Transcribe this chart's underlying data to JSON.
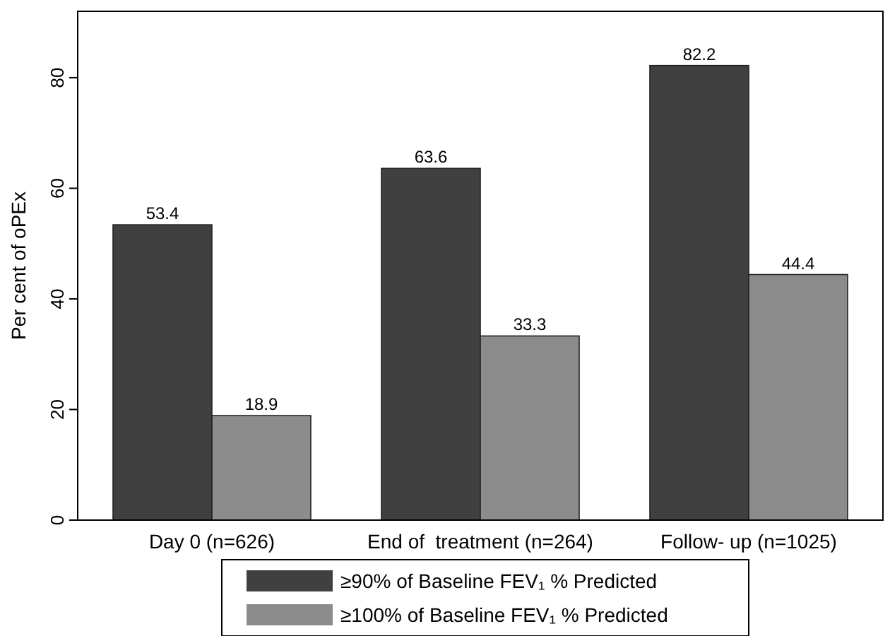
{
  "chart_data": {
    "type": "bar",
    "ylabel": "Per cent of oPEx",
    "categories": [
      "Day 0 (n=626)",
      "End of  treatment (n=264)",
      "Follow- up (n=1025)"
    ],
    "series": [
      {
        "name": "≥90% of Baseline FEV₁ % Predicted",
        "color": "#404040",
        "values": [
          53.4,
          63.6,
          82.2
        ]
      },
      {
        "name": "≥100% of Baseline FEV₁ % Predicted",
        "color": "#8c8c8c",
        "values": [
          18.9,
          33.3,
          44.4
        ]
      }
    ],
    "ylim": [
      0,
      92
    ],
    "yticks": [
      0,
      20,
      40,
      60,
      80
    ],
    "grid": false,
    "legend": "bottom",
    "data_labels": true
  }
}
